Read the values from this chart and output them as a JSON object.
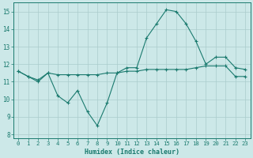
{
  "title": "",
  "xlabel": "Humidex (Indice chaleur)",
  "x_values": [
    0,
    1,
    2,
    3,
    4,
    5,
    6,
    7,
    8,
    9,
    10,
    11,
    12,
    13,
    14,
    15,
    16,
    17,
    18,
    19,
    20,
    21,
    22,
    23
  ],
  "line1_y": [
    11.6,
    11.3,
    11.0,
    11.5,
    10.2,
    9.8,
    10.5,
    9.3,
    8.5,
    9.8,
    11.5,
    11.8,
    11.8,
    13.5,
    14.3,
    15.1,
    15.0,
    14.3,
    13.3,
    12.0,
    12.4,
    12.4,
    11.8,
    11.7
  ],
  "line2_y": [
    11.6,
    11.3,
    11.1,
    11.5,
    11.4,
    11.4,
    11.4,
    11.4,
    11.4,
    11.5,
    11.5,
    11.6,
    11.6,
    11.7,
    11.7,
    11.7,
    11.7,
    11.7,
    11.8,
    11.9,
    11.9,
    11.9,
    11.3,
    11.3
  ],
  "line_color": "#1a7a6e",
  "bg_color": "#cce8e8",
  "grid_color": "#aacccc",
  "ylim": [
    7.8,
    15.5
  ],
  "yticks": [
    8,
    9,
    10,
    11,
    12,
    13,
    14,
    15
  ],
  "xlim": [
    -0.5,
    23.5
  ],
  "xticks": [
    0,
    1,
    2,
    3,
    4,
    5,
    6,
    7,
    8,
    9,
    10,
    11,
    12,
    13,
    14,
    15,
    16,
    17,
    18,
    19,
    20,
    21,
    22,
    23
  ]
}
